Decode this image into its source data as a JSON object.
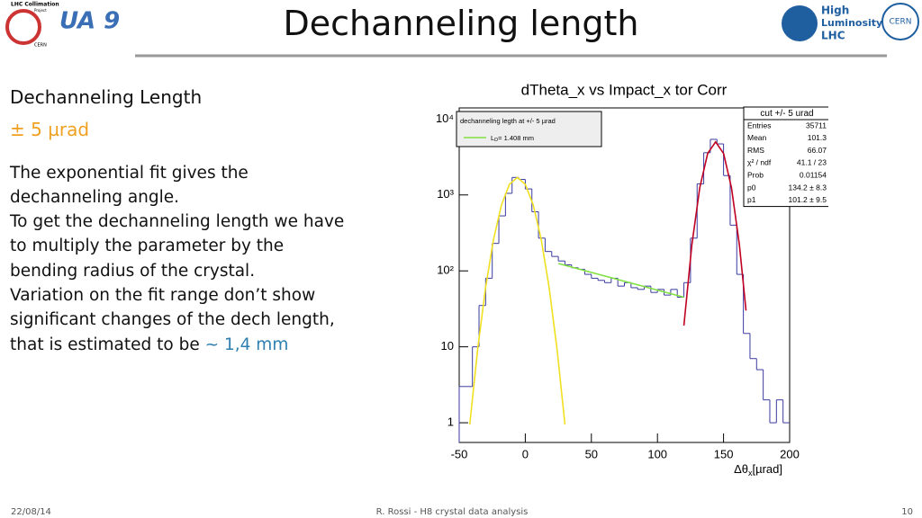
{
  "header": {
    "title": "Dechanneling length",
    "logo_left": {
      "line1": "LHC Collimation",
      "line2": "Project",
      "line3": "CERN",
      "mark": "UA 9"
    },
    "logo_right": {
      "line1": "High",
      "line2": "Luminosity",
      "line3": "LHC",
      "mark": "CERN"
    }
  },
  "body": {
    "heading": "Dechanneling Length",
    "cut": "± 5 µrad",
    "lines": [
      "The exponential fit gives the",
      "dechanneling angle.",
      "To get the dechanneling length we have",
      "to multiply the parameter by the",
      "bending radius of the crystal.",
      "Variation on the fit range don’t show",
      "significant changes of the dech length,",
      "that is estimated to be"
    ],
    "highlight": "~ 1,4 mm"
  },
  "chart_data": {
    "type": "histogram",
    "title": "dTheta_x vs Impact_x tor Corr",
    "x_label": "Δθ",
    "x_label_subscript": "x",
    "x_label_unit": "[µrad]",
    "bins": [
      -50,
      -45,
      -40,
      -35,
      -30,
      -25,
      -20,
      -15,
      -10,
      -5,
      0,
      5,
      10,
      15,
      20,
      25,
      30,
      35,
      40,
      45,
      50,
      55,
      60,
      65,
      70,
      75,
      80,
      85,
      90,
      95,
      100,
      105,
      110,
      115,
      120,
      125,
      130,
      135,
      140,
      145,
      150,
      155,
      160,
      165,
      170,
      175,
      180,
      185,
      190,
      195,
      200
    ],
    "values": [
      3,
      3,
      10,
      35,
      80,
      230,
      530,
      1050,
      1700,
      1600,
      1200,
      600,
      270,
      180,
      155,
      135,
      120,
      110,
      105,
      90,
      80,
      75,
      70,
      80,
      63,
      70,
      60,
      57,
      63,
      52,
      57,
      48,
      57,
      45,
      70,
      270,
      1400,
      3600,
      5400,
      4700,
      1800,
      400,
      90,
      15,
      7,
      5,
      2,
      1,
      2,
      1
    ],
    "color": "#3a3aa0",
    "fits": [
      {
        "color": "#f0e020",
        "x": [
          -42,
          -36,
          -30,
          -24,
          -18,
          -12,
          -6,
          0,
          6,
          12,
          18,
          24,
          30
        ],
        "values": [
          0.95,
          9.4,
          61,
          262,
          740,
          1380,
          1700,
          1380,
          740,
          262,
          61,
          9.4,
          0.95
        ]
      },
      {
        "color": "#80e040",
        "x": [
          25,
          120
        ],
        "values": [
          125,
          45
        ]
      },
      {
        "color": "#c00020",
        "x": [
          120,
          126,
          132,
          138,
          144,
          150,
          156,
          162,
          167
        ],
        "values": [
          19,
          219,
          1245,
          3530,
          5000,
          3530,
          1245,
          219,
          30
        ]
      }
    ],
    "log_y": true,
    "xlim": [
      -50,
      200
    ],
    "xticks": [
      -50,
      0,
      50,
      100,
      150,
      200
    ],
    "ylim": [
      0.55,
      14000
    ],
    "yticks": [
      1,
      10,
      {
        "value": 100,
        "label": "10²"
      },
      {
        "value": 1000,
        "label": "10³"
      },
      {
        "value": 10000,
        "label": "10⁴"
      }
    ],
    "legend": {
      "title": "dechanneling legth at +/- 5 µrad",
      "entry": "L",
      "entry_subscript": "D",
      "entry_value": "= 1.408 mm"
    },
    "stats": {
      "title": "cut +/- 5 urad",
      "rows": [
        [
          "Entries",
          "35711"
        ],
        [
          "Mean",
          "101.3"
        ],
        [
          "RMS",
          "66.07"
        ],
        [
          "χ² / ndf",
          "41.1 / 23"
        ],
        [
          "Prob",
          "0.01154"
        ],
        [
          "p0",
          "134.2 ± 8.3"
        ],
        [
          "p1",
          "101.2 ± 9.5"
        ]
      ]
    }
  },
  "footer": {
    "date": "22/08/14",
    "center": "R. Rossi - H8 crystal data analysis",
    "page": "10"
  }
}
